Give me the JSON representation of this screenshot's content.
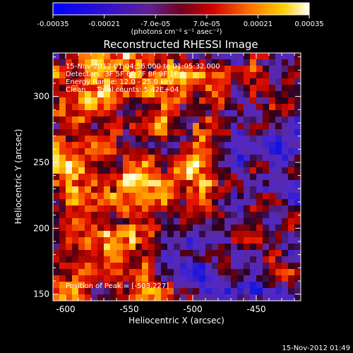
{
  "colorbar": {
    "ticks": [
      "-0.00035",
      "-0.00021",
      "-7.0e-05",
      "7.0e-05",
      "0.00021",
      "0.00035"
    ],
    "unit_label": "(photons cm⁻² s⁻¹ asec⁻²)",
    "range": [
      -0.00035,
      0.00035
    ],
    "colormap": "blue-purple-red-orange-yellow-white"
  },
  "chart_data": {
    "type": "heatmap",
    "title": "Reconstructed RHESSI Image",
    "xlabel": "Heliocentric X (arcsec)",
    "ylabel": "Heliocentric Y (arcsec)",
    "xlim": [
      -610,
      -415
    ],
    "ylim": [
      145,
      333
    ],
    "x_ticks": [
      -600,
      -550,
      -500,
      -450
    ],
    "y_ticks": [
      150,
      200,
      250,
      300
    ],
    "annotations": [
      "15-Nov-2012 01:04:56.000 to 01:05:32.000",
      "Detectors: 3F 5F 6F 7F 8F 9F 1F 0",
      "Energy Range: 12.0 - 25.0 keV",
      "Clean     Total counts: 5.42E+04"
    ],
    "peak_label": "Position of Peak = [-503,227]",
    "peak": [
      -503,
      227
    ]
  },
  "footer_timestamp": "15-Nov-2012 01:49"
}
